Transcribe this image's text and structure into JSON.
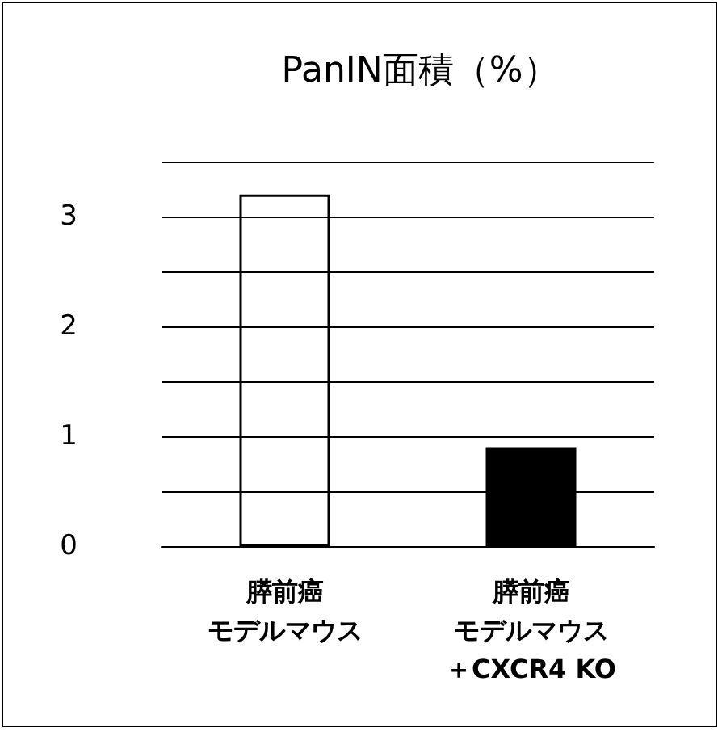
{
  "chart_data": {
    "type": "bar",
    "title": "PanIN面積（%）",
    "categories": [
      "膵前癌モデルマウス",
      "膵前癌モデルマウス＋CXCR4 KO"
    ],
    "values": [
      3.2,
      0.9
    ],
    "colors": [
      "#ffffff",
      "#000000"
    ],
    "ylim": [
      0,
      3.5
    ],
    "yticks": [
      0,
      {
        "value": 0.5,
        "label": null
      },
      1,
      {
        "value": 1.5,
        "label": null
      },
      2,
      {
        "value": 2.5,
        "label": null
      },
      3,
      {
        "value": 3.5,
        "label": null
      }
    ],
    "grid": "y"
  }
}
